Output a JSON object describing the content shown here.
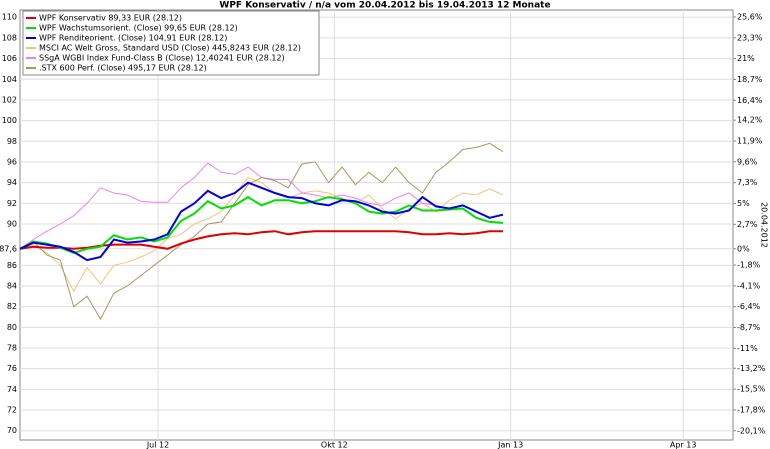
{
  "chart_data": {
    "type": "line",
    "title": "WPF Konservativ / n/a vom 20.04.2012 bis 19.04.2013 12 Monate",
    "date_label": "20.04.2012",
    "x": [
      0,
      7,
      14,
      21,
      28,
      35,
      42,
      49,
      56,
      63,
      70,
      77,
      84,
      91,
      98,
      105,
      112,
      119,
      126,
      133,
      140,
      147,
      154,
      161,
      168,
      175,
      182,
      189,
      196,
      203,
      210,
      217,
      224,
      231,
      238,
      245,
      252
    ],
    "xlim": [
      0,
      372
    ],
    "xticks": [
      {
        "value": 72,
        "label": "Jul 12"
      },
      {
        "value": 164,
        "label": "Okt 12"
      },
      {
        "value": 256,
        "label": "Jan 13"
      },
      {
        "value": 346,
        "label": "Apr 13"
      }
    ],
    "ylim": [
      69.1,
      110.7
    ],
    "yticks": [
      70,
      72,
      74,
      76,
      78,
      80,
      82,
      84,
      86,
      {
        "value": 87.6,
        "label": "87,6"
      },
      90,
      92,
      94,
      96,
      98,
      100,
      102,
      104,
      106,
      108,
      110
    ],
    "y2lim": [
      -21.12,
      26.37
    ],
    "y2ticks": [
      {
        "value": -20.1,
        "label": "-20,1%"
      },
      {
        "value": -17.8,
        "label": "-17,8%"
      },
      {
        "value": -15.5,
        "label": "-15,5%"
      },
      {
        "value": -13.2,
        "label": "-13,2%"
      },
      {
        "value": -11,
        "label": "-11%"
      },
      {
        "value": -8.7,
        "label": "-8,7%"
      },
      {
        "value": -6.4,
        "label": "-6,4%"
      },
      {
        "value": -4.1,
        "label": "-4,1%"
      },
      {
        "value": -1.8,
        "label": "-1,8%"
      },
      {
        "value": 0,
        "label": "0%"
      },
      {
        "value": 2.7,
        "label": "2,7%"
      },
      {
        "value": 5,
        "label": "5%"
      },
      {
        "value": 7.3,
        "label": "7,3%"
      },
      {
        "value": 9.6,
        "label": "9,6%"
      },
      {
        "value": 11.9,
        "label": "11,9%"
      },
      {
        "value": 14.2,
        "label": "14,2%"
      },
      {
        "value": 16.4,
        "label": "16,4%"
      },
      {
        "value": 18.7,
        "label": "18,7%"
      },
      {
        "value": 21,
        "label": "21%"
      },
      {
        "value": 23.3,
        "label": "23,3%"
      },
      {
        "value": 25.6,
        "label": "25,6%"
      }
    ],
    "grid": true,
    "legend": "top-left",
    "series": [
      {
        "name": "WPF Konservativ 89,33 EUR (28.12)",
        "color": "#e00000",
        "values": [
          87.6,
          87.8,
          87.7,
          87.7,
          87.6,
          87.7,
          87.9,
          88.0,
          88.0,
          88.0,
          87.8,
          87.6,
          88.1,
          88.5,
          88.8,
          89.0,
          89.1,
          89.0,
          89.2,
          89.3,
          89.0,
          89.2,
          89.3,
          89.3,
          89.3,
          89.3,
          89.3,
          89.3,
          89.3,
          89.2,
          89.0,
          89.0,
          89.1,
          89.0,
          89.1,
          89.3,
          89.3
        ]
      },
      {
        "name": "WPF Wachstumsorient. (Close) 99,65 EUR (28.12)",
        "color": "#00e000",
        "values": [
          87.6,
          88.3,
          88.1,
          87.7,
          87.2,
          87.6,
          87.8,
          88.9,
          88.5,
          88.7,
          88.3,
          88.7,
          90.3,
          91.0,
          92.2,
          91.5,
          91.8,
          92.6,
          91.8,
          92.3,
          92.3,
          92.0,
          92.2,
          92.6,
          92.4,
          92.0,
          91.2,
          91.0,
          91.2,
          91.8,
          91.3,
          91.3,
          91.4,
          91.5,
          90.6,
          90.2,
          90.1
        ]
      },
      {
        "name": "WPF Renditeorient. (Close) 104,91 EUR (28.12)",
        "color": "#0000e0",
        "values": [
          87.6,
          88.2,
          88.0,
          87.8,
          87.3,
          86.5,
          86.8,
          88.5,
          88.2,
          88.3,
          88.5,
          89.0,
          91.2,
          92.0,
          93.2,
          92.5,
          93.0,
          94.0,
          93.5,
          93.0,
          92.6,
          92.5,
          92.0,
          91.8,
          92.3,
          92.2,
          91.8,
          91.2,
          91.0,
          91.3,
          92.6,
          91.7,
          91.5,
          91.8,
          91.2,
          90.6,
          90.9
        ]
      },
      {
        "name": "MSCI AC Welt Gross, Standard USD (Close) 445,8243 EUR (28.12)",
        "color": "#f5c080",
        "values": [
          87.6,
          88.0,
          87.2,
          86.0,
          83.5,
          85.8,
          84.2,
          86.0,
          86.3,
          86.8,
          87.4,
          88.6,
          89.0,
          90.0,
          90.5,
          91.2,
          92.8,
          94.5,
          94.0,
          93.0,
          92.5,
          93.0,
          93.2,
          93.0,
          92.5,
          92.0,
          92.8,
          91.5,
          90.5,
          91.5,
          92.0,
          91.2,
          92.3,
          93.0,
          92.8,
          93.4,
          92.8
        ]
      },
      {
        "name": "SSgA WGBI Index Fund-Class B (Close) 12,40241 EUR (28.12)",
        "color": "#f080f0",
        "values": [
          87.6,
          88.5,
          89.3,
          90.0,
          90.8,
          92.0,
          93.5,
          93.0,
          92.8,
          92.2,
          92.1,
          92.1,
          93.5,
          94.5,
          95.9,
          95.0,
          94.8,
          95.5,
          94.5,
          94.3,
          94.3,
          93.0,
          92.8,
          92.5,
          92.8,
          92.5,
          92.0,
          91.8,
          92.5,
          93.0,
          92.0,
          91.8,
          91.5,
          91.8,
          91.2,
          90.6,
          90.9
        ]
      },
      {
        "name": ".STX 600 Perf. (Close) 495,17 EUR (28.12)",
        "color": "#a89860",
        "values": [
          87.6,
          88.3,
          87.0,
          86.5,
          82.0,
          83.0,
          80.8,
          83.3,
          84.0,
          85.0,
          86.0,
          87.0,
          88.0,
          88.8,
          90.0,
          90.2,
          92.0,
          93.8,
          94.5,
          94.2,
          93.5,
          95.8,
          96.0,
          94.0,
          95.5,
          93.8,
          95.0,
          94.0,
          95.5,
          94.0,
          93.0,
          95.0,
          96.0,
          97.2,
          97.4,
          97.8,
          97.0
        ]
      }
    ]
  }
}
